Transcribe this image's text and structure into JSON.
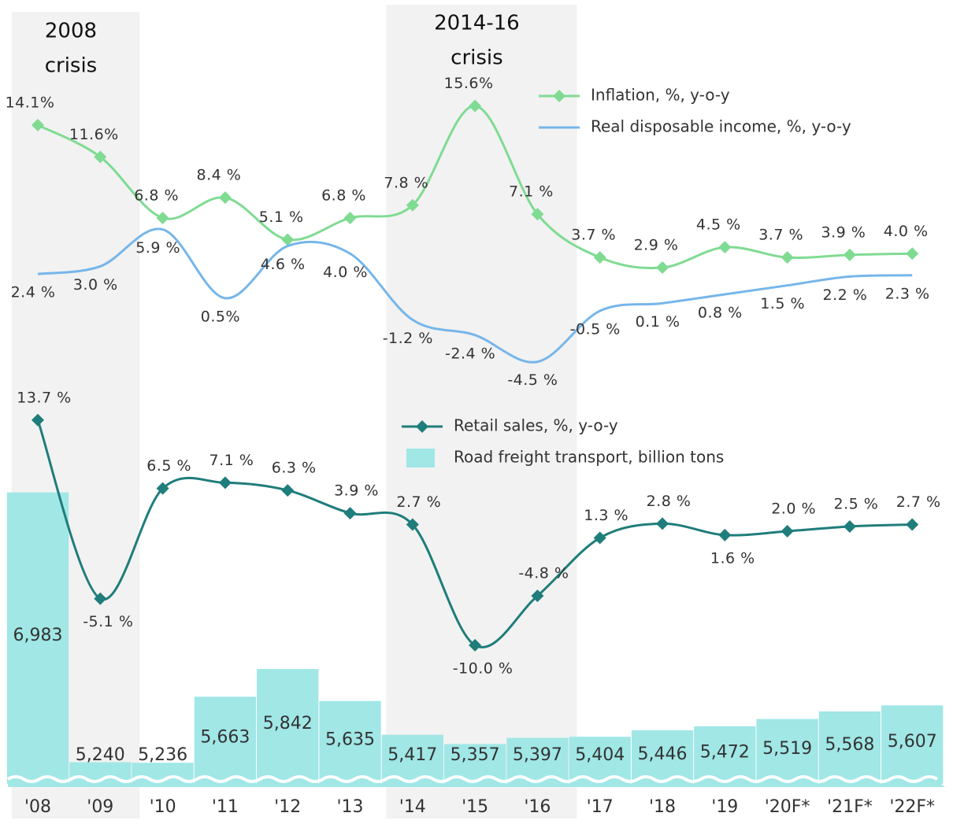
{
  "chart_data": [
    {
      "type": "line",
      "annotations": [
        {
          "text": [
            "2008",
            "crisis"
          ],
          "span": [
            "'08",
            "'09"
          ]
        },
        {
          "text": [
            "2014-16",
            "crisis"
          ],
          "span": [
            "'14",
            "'16"
          ]
        }
      ],
      "series": [
        {
          "name": "Inflation, %, y-o-y",
          "color": "#7fdb92",
          "marker": "diamond",
          "values": [
            14.1,
            11.6,
            6.8,
            8.4,
            5.1,
            6.8,
            7.8,
            15.6,
            7.1,
            3.7,
            2.9,
            4.5,
            3.7,
            3.9,
            4.0
          ],
          "value_labels": [
            "14.1%",
            "11.6%",
            "6.8 %",
            "8.4 %",
            "5.1 %",
            "6.8 %",
            "7.8 %",
            "15.6%",
            "7.1 %",
            "3.7 %",
            "2.9 %",
            "4.5 %",
            "3.7 %",
            "3.9 %",
            "4.0 %"
          ]
        },
        {
          "name": "Real disposable income, %, y-o-y",
          "color": "#76b6ea",
          "marker": "none",
          "values": [
            2.4,
            3.0,
            5.9,
            0.5,
            4.6,
            4.0,
            -1.2,
            -2.4,
            -4.5,
            -0.5,
            0.1,
            0.8,
            1.5,
            2.2,
            2.3
          ],
          "value_labels": [
            "2.4 %",
            "3.0 %",
            "5.9 %",
            "0.5%",
            "4.6 %",
            "4.0 %",
            "-1.2 %",
            "-2.4 %",
            "-4.5 %",
            "-0.5 %",
            "0.1 %",
            "0.8 %",
            "1.5 %",
            "2.2 %",
            "2.3 %"
          ]
        }
      ],
      "ylim": [
        -6,
        17
      ],
      "legend": "upper right"
    },
    {
      "type": "combo",
      "categories": [
        "'08",
        "'09",
        "'10",
        "'11",
        "'12",
        "'13",
        "'14",
        "'15",
        "'16",
        "'17",
        "'18",
        "'19",
        "'20F*",
        "'21F*",
        "'22F*"
      ],
      "series": [
        {
          "name": "Retail sales, %, y-o-y",
          "type": "line",
          "color": "#1f7d7b",
          "marker": "diamond",
          "values": [
            13.7,
            -5.1,
            6.5,
            7.1,
            6.3,
            3.9,
            2.7,
            -10.0,
            -4.8,
            1.3,
            2.8,
            1.6,
            2.0,
            2.5,
            2.7
          ],
          "value_labels": [
            "13.7 %",
            "-5.1 %",
            "6.5 %",
            "7.1 %",
            "6.3 %",
            "3.9 %",
            "2.7 %",
            "-10.0 %",
            "-4.8 %",
            "1.3 %",
            "2.8 %",
            "1.6 %",
            "2.0 %",
            "2.5 %",
            "2.7 %"
          ]
        },
        {
          "name": "Road freight transport, billion tons",
          "type": "bar",
          "axis": "y2",
          "color": "#a0e7e6",
          "values": [
            6983,
            5240,
            5236,
            5663,
            5842,
            5635,
            5417,
            5357,
            5397,
            5404,
            5446,
            5472,
            5519,
            5568,
            5607
          ],
          "value_labels": [
            "6,983",
            "5,240",
            "5,236",
            "5,663",
            "5,842",
            "5,635",
            "5,417",
            "5,357",
            "5,397",
            "5,404",
            "5,446",
            "5,472",
            "5,519",
            "5,568",
            "5,607"
          ]
        }
      ],
      "ylim": [
        -12,
        16
      ],
      "y2lim": [
        5100,
        7500
      ],
      "legend": "upper center"
    }
  ]
}
